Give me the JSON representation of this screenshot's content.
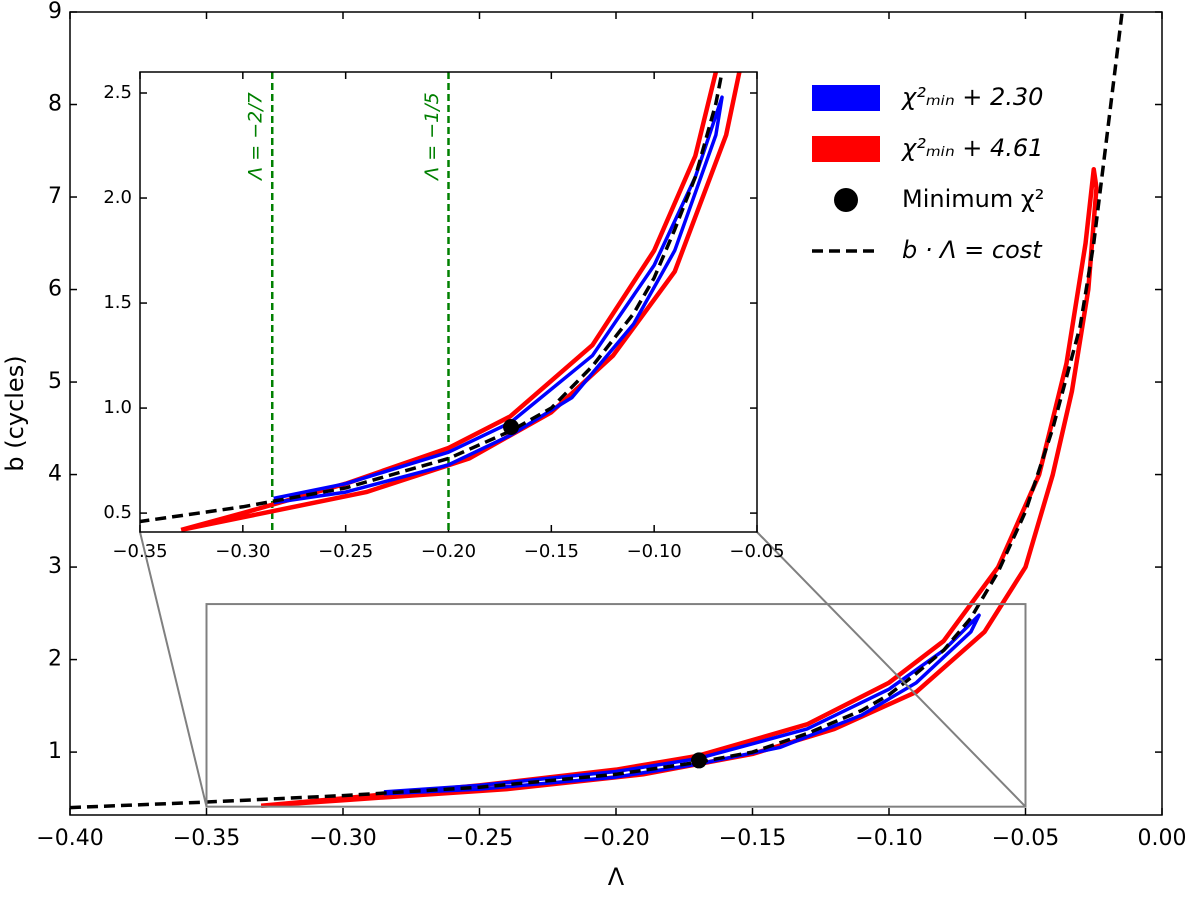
{
  "chart_data": [
    {
      "type": "line",
      "xlabel": "Λ",
      "ylabel": "b (cycles)",
      "xlim": [
        -0.4,
        0.0
      ],
      "ylim": [
        0.32,
        9
      ],
      "xticks": [
        {
          "value": -0.4,
          "label": "−0.40"
        },
        {
          "value": -0.35,
          "label": "−0.35"
        },
        {
          "value": -0.3,
          "label": "−0.30"
        },
        {
          "value": -0.25,
          "label": "−0.25"
        },
        {
          "value": -0.2,
          "label": "−0.20"
        },
        {
          "value": -0.15,
          "label": "−0.15"
        },
        {
          "value": -0.1,
          "label": "−0.10"
        },
        {
          "value": -0.05,
          "label": "−0.05"
        },
        {
          "value": 0,
          "label": "0.00"
        }
      ],
      "yticks": [
        1,
        2,
        3,
        4,
        5,
        6,
        7,
        8,
        9
      ],
      "legend": "upper right",
      "series": [
        {
          "name": "χ²ₘᵢₙ + 4.61",
          "color": "#ff0000",
          "style": "contour",
          "x": [
            -0.33,
            -0.3,
            -0.25,
            -0.2,
            -0.17,
            -0.13,
            -0.1,
            -0.08,
            -0.06,
            -0.045,
            -0.035,
            -0.028,
            -0.025,
            -0.024,
            -0.027,
            -0.033,
            -0.04,
            -0.05,
            -0.065,
            -0.09,
            -0.12,
            -0.15,
            -0.19,
            -0.24,
            -0.3,
            -0.33
          ],
          "values": [
            0.42,
            0.5,
            0.64,
            0.81,
            0.96,
            1.3,
            1.75,
            2.2,
            3.0,
            4.0,
            5.2,
            6.5,
            7.3,
            7.1,
            6.0,
            4.9,
            4.0,
            3.0,
            2.3,
            1.65,
            1.25,
            0.98,
            0.76,
            0.6,
            0.48,
            0.42
          ]
        },
        {
          "name": "χ²ₘᵢₙ + 2.30",
          "color": "#0000ff",
          "style": "contour",
          "x": [
            -0.285,
            -0.25,
            -0.2,
            -0.17,
            -0.13,
            -0.1,
            -0.08,
            -0.067,
            -0.07,
            -0.09,
            -0.11,
            -0.14,
            -0.17,
            -0.2,
            -0.25,
            -0.285
          ],
          "values": [
            0.57,
            0.64,
            0.79,
            0.93,
            1.25,
            1.68,
            2.1,
            2.48,
            2.3,
            1.75,
            1.4,
            1.05,
            0.87,
            0.73,
            0.6,
            0.55
          ]
        },
        {
          "name": "b · Λ = cost",
          "color": "#000000",
          "style": "dashed",
          "x": [
            -0.4,
            -0.35,
            -0.3,
            -0.25,
            -0.2,
            -0.17,
            -0.15,
            -0.13,
            -0.11,
            -0.1,
            -0.09,
            -0.08,
            -0.07,
            -0.06,
            -0.05,
            -0.04,
            -0.03,
            -0.025,
            -0.02,
            -0.0146
          ],
          "values": [
            0.4,
            0.46,
            0.53,
            0.62,
            0.76,
            0.89,
            1.0,
            1.2,
            1.45,
            1.62,
            1.85,
            2.1,
            2.45,
            2.95,
            3.6,
            4.5,
            5.6,
            6.5,
            7.7,
            9.0
          ]
        },
        {
          "name": "Minimum χ²",
          "color": "#000000",
          "style": "dot",
          "x": [
            -0.1696
          ],
          "values": [
            0.91
          ]
        }
      ]
    },
    {
      "type": "inset",
      "xlim": [
        -0.35,
        -0.05
      ],
      "ylim": [
        0.41,
        2.6
      ],
      "xticks": [
        {
          "value": -0.35,
          "label": "−0.35"
        },
        {
          "value": -0.3,
          "label": "−0.30"
        },
        {
          "value": -0.25,
          "label": "−0.25"
        },
        {
          "value": -0.2,
          "label": "−0.20"
        },
        {
          "value": -0.15,
          "label": "−0.15"
        },
        {
          "value": -0.1,
          "label": "−0.10"
        },
        {
          "value": -0.05,
          "label": "−0.05"
        }
      ],
      "yticks": [
        0.5,
        {
          "value": 1.0,
          "label": "1.0"
        },
        1.5,
        {
          "value": 2.0,
          "label": "2.0"
        },
        2.5
      ],
      "vlines": [
        {
          "x": -0.2857,
          "label": "Λ = −2/7",
          "color": "#008000"
        },
        {
          "x": -0.2,
          "label": "Λ = −1/5",
          "color": "#008000"
        }
      ]
    }
  ]
}
